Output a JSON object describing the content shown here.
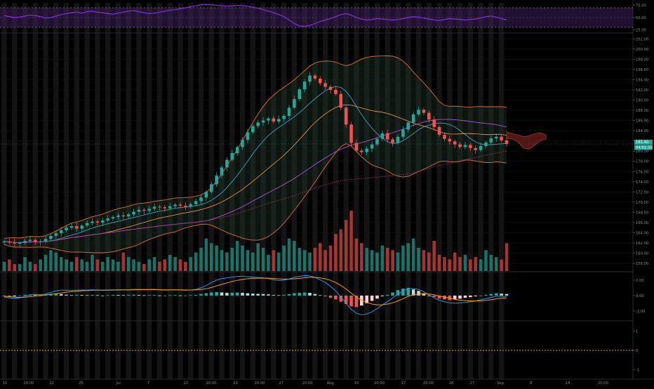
{
  "chart_data": [
    {
      "type": "line",
      "panel": "rsi",
      "title": "",
      "y_ticks": [
        "75.00",
        "50.00",
        "25.00"
      ],
      "y_tick_values": [
        75,
        50,
        25
      ],
      "ylim": [
        20,
        80
      ],
      "band": [
        30,
        70
      ],
      "series_color": "#8a2be2",
      "band_fill": "#3a1f5a",
      "values": [
        54,
        52,
        50,
        51,
        53,
        55,
        54,
        52,
        49,
        50,
        53,
        56,
        58,
        60,
        61,
        59,
        62,
        63,
        61,
        60,
        58,
        57,
        59,
        61,
        63,
        64,
        62,
        60,
        58,
        59,
        61,
        63,
        65,
        66,
        68,
        70,
        72,
        74,
        76,
        77,
        76,
        75,
        74,
        73,
        74,
        75,
        74,
        73,
        71,
        69,
        66,
        63,
        60,
        56,
        52,
        45,
        38,
        33,
        32,
        34,
        38,
        42,
        45,
        48,
        52,
        56,
        58,
        55,
        50,
        47,
        45,
        46,
        48,
        47,
        46,
        45,
        46,
        48,
        50,
        52,
        51,
        49,
        47,
        45,
        44,
        46,
        48,
        47,
        46,
        45,
        46,
        47,
        49,
        52,
        53,
        51,
        48,
        45
      ]
    },
    {
      "type": "candlestick",
      "panel": "price",
      "title": "",
      "y_ticks": [
        "202.00",
        "200.00",
        "198.00",
        "196.00",
        "194.00",
        "192.00",
        "190.00",
        "188.00",
        "186.00",
        "184.00",
        "182.00",
        "180.00",
        "178.00",
        "176.00",
        "174.00",
        "172.00",
        "170.00",
        "168.00",
        "166.00",
        "164.00",
        "162.00",
        "160.00",
        "158.00"
      ],
      "y_tick_values": [
        202,
        200,
        198,
        196,
        194,
        192,
        190,
        188,
        186,
        184,
        182,
        180,
        178,
        176,
        174,
        172,
        170,
        168,
        166,
        164,
        162,
        160,
        158
      ],
      "ylim": [
        156.5,
        203
      ],
      "last_price_label": "181.40",
      "countdown_label": "04:01:35",
      "last_price": 181.4,
      "up_color": "#26a69a",
      "down_color": "#ef5350",
      "close": [
        162.3,
        162.1,
        161.9,
        162.0,
        162.4,
        162.6,
        162.2,
        162.3,
        162.8,
        163.4,
        163.9,
        164.5,
        165.0,
        165.3,
        164.8,
        165.4,
        165.9,
        166.2,
        166.0,
        166.4,
        166.8,
        167.1,
        167.4,
        167.2,
        167.6,
        168.1,
        168.5,
        168.3,
        168.7,
        169.1,
        169.0,
        168.8,
        169.2,
        169.5,
        169.3,
        169.1,
        169.6,
        170.2,
        170.9,
        172.0,
        173.5,
        175.2,
        176.8,
        178.3,
        179.6,
        180.8,
        182.2,
        183.7,
        184.9,
        185.6,
        186.0,
        186.4,
        185.8,
        186.3,
        186.9,
        188.5,
        190.2,
        192.1,
        193.6,
        194.8,
        194.2,
        193.3,
        192.6,
        192.0,
        191.2,
        188.5,
        185.2,
        181.6,
        180.1,
        179.8,
        180.5,
        181.3,
        182.4,
        183.5,
        182.3,
        181.6,
        182.8,
        184.2,
        185.6,
        187.2,
        188.1,
        187.5,
        186.2,
        184.7,
        183.2,
        182.4,
        181.9,
        181.3,
        180.8,
        181.2,
        180.6,
        180.2,
        181.0,
        181.7,
        182.5,
        182.8,
        182.1,
        181.4
      ]
    },
    {
      "type": "bar",
      "panel": "volume",
      "title": "",
      "values": [
        4,
        5,
        3,
        3,
        6,
        4,
        3,
        5,
        7,
        9,
        8,
        6,
        5,
        4,
        6,
        5,
        4,
        7,
        5,
        4,
        6,
        5,
        4,
        8,
        6,
        5,
        4,
        3,
        5,
        6,
        4,
        5,
        7,
        6,
        5,
        4,
        6,
        8,
        10,
        14,
        12,
        11,
        9,
        8,
        10,
        13,
        11,
        9,
        8,
        12,
        10,
        7,
        9,
        8,
        11,
        14,
        13,
        10,
        9,
        8,
        10,
        12,
        9,
        11,
        16,
        18,
        22,
        26,
        14,
        12,
        10,
        9,
        8,
        11,
        10,
        9,
        8,
        11,
        12,
        14,
        10,
        9,
        8,
        13,
        7,
        6,
        5,
        8,
        6,
        7,
        5,
        6,
        5,
        9,
        7,
        6,
        5,
        12
      ]
    },
    {
      "type": "line",
      "panel": "macd",
      "title": "",
      "y_ticks": [
        "2.00",
        "0.00",
        "-2.00"
      ],
      "y_tick_values": [
        2,
        0,
        -2
      ],
      "ylim": [
        -3.2,
        3.0
      ],
      "histogram": [
        -0.1,
        -0.15,
        -0.1,
        0.0,
        0.1,
        0.12,
        0.05,
        -0.05,
        0.1,
        0.2,
        0.25,
        0.2,
        0.1,
        0.05,
        0.1,
        0.08,
        0.05,
        0.1,
        0.05,
        0.0,
        0.05,
        0.1,
        0.08,
        0.05,
        0.1,
        0.12,
        0.08,
        0.04,
        0.06,
        0.08,
        0.02,
        -0.02,
        0.04,
        0.06,
        0.02,
        -0.02,
        0.05,
        0.1,
        0.2,
        0.3,
        0.4,
        0.45,
        0.4,
        0.35,
        0.38,
        0.4,
        0.35,
        0.3,
        0.25,
        0.22,
        0.2,
        0.15,
        0.08,
        0.05,
        0.1,
        0.2,
        0.3,
        0.35,
        0.4,
        0.35,
        0.2,
        0.05,
        -0.1,
        -0.3,
        -0.5,
        -0.8,
        -1.1,
        -1.4,
        -1.5,
        -1.3,
        -1.0,
        -0.7,
        -0.4,
        -0.1,
        0.1,
        0.4,
        0.7,
        0.9,
        1.0,
        0.8,
        0.6,
        0.3,
        0.0,
        -0.2,
        -0.4,
        -0.5,
        -0.6,
        -0.5,
        -0.4,
        -0.3,
        -0.2,
        -0.1,
        0.0,
        0.1,
        0.2,
        0.3,
        0.25,
        0.2
      ],
      "macd": [
        -0.2,
        -0.3,
        -0.35,
        -0.3,
        -0.1,
        0.1,
        0.15,
        0.1,
        0.2,
        0.4,
        0.6,
        0.7,
        0.7,
        0.65,
        0.7,
        0.72,
        0.7,
        0.75,
        0.72,
        0.7,
        0.72,
        0.75,
        0.76,
        0.74,
        0.76,
        0.8,
        0.8,
        0.78,
        0.78,
        0.8,
        0.75,
        0.7,
        0.72,
        0.75,
        0.72,
        0.68,
        0.72,
        0.8,
        1.0,
        1.3,
        1.7,
        2.0,
        2.2,
        2.3,
        2.4,
        2.5,
        2.5,
        2.45,
        2.4,
        2.35,
        2.3,
        2.2,
        2.05,
        1.95,
        2.0,
        2.15,
        2.35,
        2.5,
        2.6,
        2.55,
        2.35,
        2.05,
        1.7,
        1.2,
        0.6,
        -0.2,
        -1.0,
        -1.8,
        -2.3,
        -2.5,
        -2.4,
        -2.1,
        -1.7,
        -1.2,
        -0.8,
        -0.3,
        0.2,
        0.6,
        0.9,
        0.9,
        0.8,
        0.5,
        0.1,
        -0.3,
        -0.6,
        -0.8,
        -0.95,
        -1.0,
        -0.95,
        -0.9,
        -0.8,
        -0.7,
        -0.55,
        -0.4,
        -0.25,
        -0.1,
        -0.1,
        -0.15
      ],
      "signal": [
        -0.1,
        -0.15,
        -0.2,
        -0.25,
        -0.22,
        -0.15,
        -0.05,
        0.02,
        0.08,
        0.15,
        0.25,
        0.35,
        0.45,
        0.52,
        0.57,
        0.62,
        0.65,
        0.68,
        0.69,
        0.7,
        0.7,
        0.71,
        0.72,
        0.73,
        0.73,
        0.75,
        0.76,
        0.77,
        0.77,
        0.78,
        0.77,
        0.75,
        0.74,
        0.74,
        0.74,
        0.72,
        0.72,
        0.73,
        0.78,
        0.88,
        1.05,
        1.25,
        1.45,
        1.65,
        1.82,
        1.98,
        2.1,
        2.18,
        2.23,
        2.26,
        2.27,
        2.26,
        2.22,
        2.17,
        2.13,
        2.13,
        2.17,
        2.24,
        2.31,
        2.36,
        2.36,
        2.3,
        2.18,
        1.98,
        1.7,
        1.3,
        0.85,
        0.3,
        -0.2,
        -0.6,
        -0.9,
        -1.1,
        -1.2,
        -1.2,
        -1.1,
        -0.95,
        -0.7,
        -0.4,
        -0.1,
        0.1,
        0.2,
        0.25,
        0.2,
        0.1,
        -0.05,
        -0.2,
        -0.35,
        -0.5,
        -0.6,
        -0.66,
        -0.7,
        -0.7,
        -0.68,
        -0.62,
        -0.55,
        -0.45,
        -0.35,
        -0.3
      ]
    },
    {
      "type": "line",
      "panel": "bottom",
      "title": "",
      "y_ticks": [
        "1",
        "0",
        "-1"
      ],
      "y_tick_values": [
        1,
        0,
        -1
      ],
      "ylim": [
        -1.5,
        1.5
      ],
      "reference_line": 0,
      "reference_color": "#ff9800"
    }
  ],
  "x_axis": {
    "labels": [
      "15",
      "20:00",
      "22",
      "25",
      "Jul",
      "7",
      "13",
      "20:00",
      "23",
      "20:00",
      "27",
      "20:00",
      "Aug",
      "10",
      "20:00",
      "17",
      "20:00",
      "26",
      "27",
      "Sep",
      "8",
      "14",
      "20:00"
    ],
    "label_positions": [
      0.004,
      0.044,
      0.079,
      0.124,
      0.181,
      0.227,
      0.284,
      0.323,
      0.36,
      0.397,
      0.43,
      0.47,
      0.505,
      0.545,
      0.58,
      0.617,
      0.655,
      0.69,
      0.722,
      0.765,
      0.812,
      0.868,
      0.922
    ]
  },
  "price_scale_ticks": {
    "rsi_extra": [
      "75.00",
      "50.00",
      "25.00"
    ]
  }
}
